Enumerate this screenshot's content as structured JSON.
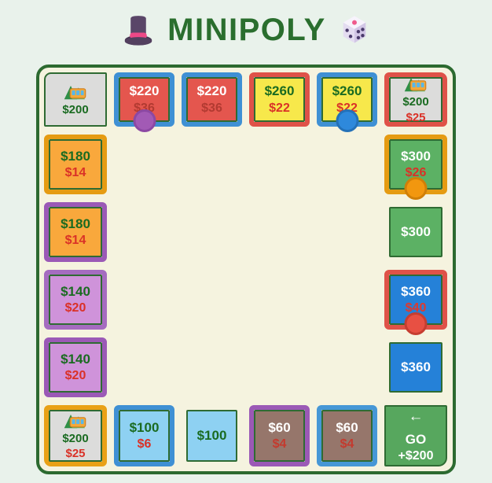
{
  "title": {
    "text": "MINIPOLY",
    "left_icon": "top-hat-icon",
    "right_icon": "dice-icon"
  },
  "colors": {
    "page_bg": "#e9f2eb",
    "board_bg": "#f5f3df",
    "board_border": "#2c6a30",
    "tile_outline": "#2f6b33",
    "title_text": "#2a6e2e",
    "price_dark_green": "#1a6b21",
    "price_white": "#ffffff",
    "rent_red": "#da3127",
    "frame_blue": "#3f90d4",
    "frame_red": "#df5248",
    "frame_orange": "#e59b12",
    "frame_purple": "#9b59b6"
  },
  "board": {
    "tiles": [
      {
        "name": "tile-railway-nw",
        "row": 1,
        "col": 1,
        "corner": "tl",
        "type": "railway",
        "icon": "railway",
        "price": "$200",
        "price_color": "#1a6b21",
        "fill": "#dcdcdb"
      },
      {
        "name": "tile-red-1",
        "row": 1,
        "col": 2,
        "type": "property",
        "price": "$220",
        "price_color": "#ffffff",
        "rent": "$36",
        "rent_color": "#b23a31",
        "fill": "#e4564e",
        "frame": "#3f90d4",
        "token": {
          "name": "player-token-purple",
          "fill": "#a25ab5",
          "ring": "#8c48a3"
        }
      },
      {
        "name": "tile-red-2",
        "row": 1,
        "col": 3,
        "type": "property",
        "price": "$220",
        "price_color": "#ffffff",
        "rent": "$36",
        "rent_color": "#b23a31",
        "fill": "#e4564e",
        "frame": "#3f90d4"
      },
      {
        "name": "tile-yellow-1",
        "row": 1,
        "col": 4,
        "type": "property",
        "price": "$260",
        "price_color": "#1a6b21",
        "rent": "$22",
        "rent_color": "#da3127",
        "fill": "#f7e84b",
        "frame": "#df5248"
      },
      {
        "name": "tile-yellow-2",
        "row": 1,
        "col": 5,
        "type": "property",
        "price": "$260",
        "price_color": "#1a6b21",
        "rent": "$22",
        "rent_color": "#da3127",
        "fill": "#f7e84b",
        "frame": "#3f90d4",
        "token": {
          "name": "player-token-blue",
          "fill": "#2e89dc",
          "ring": "#2471b8"
        }
      },
      {
        "name": "tile-railway-ne",
        "row": 1,
        "col": 6,
        "corner": "tr",
        "type": "railway",
        "icon": "railway",
        "price": "$200",
        "price_color": "#1a6b21",
        "rent": "$25",
        "rent_color": "#da3127",
        "fill": "#dcdcdb",
        "frame": "#df5248"
      },
      {
        "name": "tile-green-1",
        "row": 2,
        "col": 6,
        "type": "property",
        "price": "$300",
        "price_color": "#ffffff",
        "rent": "$26",
        "rent_color": "#da3127",
        "fill": "#5cb164",
        "frame": "#e59b12",
        "token": {
          "name": "player-token-orange",
          "fill": "#f2970f",
          "ring": "#d07f08"
        }
      },
      {
        "name": "tile-green-2",
        "row": 3,
        "col": 6,
        "type": "property",
        "price": "$300",
        "price_color": "#ffffff",
        "fill": "#5cb164"
      },
      {
        "name": "tile-blue-1",
        "row": 4,
        "col": 6,
        "type": "property",
        "price": "$360",
        "price_color": "#ffffff",
        "rent": "$40",
        "rent_color": "#e0392c",
        "fill": "#2581d8",
        "frame": "#df5248",
        "token": {
          "name": "player-token-red",
          "fill": "#e85043",
          "ring": "#c63d31"
        }
      },
      {
        "name": "tile-blue-2",
        "row": 5,
        "col": 6,
        "type": "property",
        "price": "$360",
        "price_color": "#ffffff",
        "fill": "#2581d8"
      },
      {
        "name": "tile-go",
        "row": 6,
        "col": 6,
        "corner": "br",
        "type": "go",
        "arrow": "←",
        "label": "GO",
        "bonus": "+$200",
        "fill": "#57a75e"
      },
      {
        "name": "tile-brown-2",
        "row": 6,
        "col": 5,
        "type": "property",
        "price": "$60",
        "price_color": "#ffffff",
        "rent": "$4",
        "rent_color": "#c43a2e",
        "fill": "#96766b",
        "frame": "#4697d6"
      },
      {
        "name": "tile-brown-1",
        "row": 6,
        "col": 4,
        "type": "property",
        "price": "$60",
        "price_color": "#ffffff",
        "rent": "$4",
        "rent_color": "#c43a2e",
        "fill": "#96766b",
        "frame": "#9b59b6"
      },
      {
        "name": "tile-lightblue-2",
        "row": 6,
        "col": 3,
        "type": "property",
        "price": "$100",
        "price_color": "#1a6b21",
        "fill": "#8ed1f2"
      },
      {
        "name": "tile-lightblue-1",
        "row": 6,
        "col": 2,
        "type": "property",
        "price": "$100",
        "price_color": "#1a6b21",
        "rent": "$6",
        "rent_color": "#da3127",
        "fill": "#8ed1f2",
        "frame": "#3f90d4"
      },
      {
        "name": "tile-railway-sw",
        "row": 6,
        "col": 1,
        "corner": "bl",
        "type": "railway",
        "icon": "railway",
        "price": "$200",
        "price_color": "#1a6b21",
        "rent": "$25",
        "rent_color": "#da3127",
        "fill": "#dcdcdb",
        "frame": "#e9a116"
      },
      {
        "name": "tile-purple-2",
        "row": 5,
        "col": 1,
        "type": "property",
        "price": "$140",
        "price_color": "#1a6b21",
        "rent": "$20",
        "rent_color": "#da3127",
        "fill": "#cf93da",
        "frame": "#9b59b6"
      },
      {
        "name": "tile-purple-1",
        "row": 4,
        "col": 1,
        "type": "property",
        "price": "$140",
        "price_color": "#1a6b21",
        "rent": "$20",
        "rent_color": "#da3127",
        "fill": "#cf93da",
        "frame": "#a56cc0"
      },
      {
        "name": "tile-orange-2",
        "row": 3,
        "col": 1,
        "type": "property",
        "price": "$180",
        "price_color": "#1a6b21",
        "rent": "$14",
        "rent_color": "#da3127",
        "fill": "#f9a83c",
        "frame": "#9b59b6"
      },
      {
        "name": "tile-orange-1",
        "row": 2,
        "col": 1,
        "type": "property",
        "price": "$180",
        "price_color": "#1a6b21",
        "rent": "$14",
        "rent_color": "#da3127",
        "fill": "#f9a83c",
        "frame": "#e59b12"
      }
    ]
  }
}
